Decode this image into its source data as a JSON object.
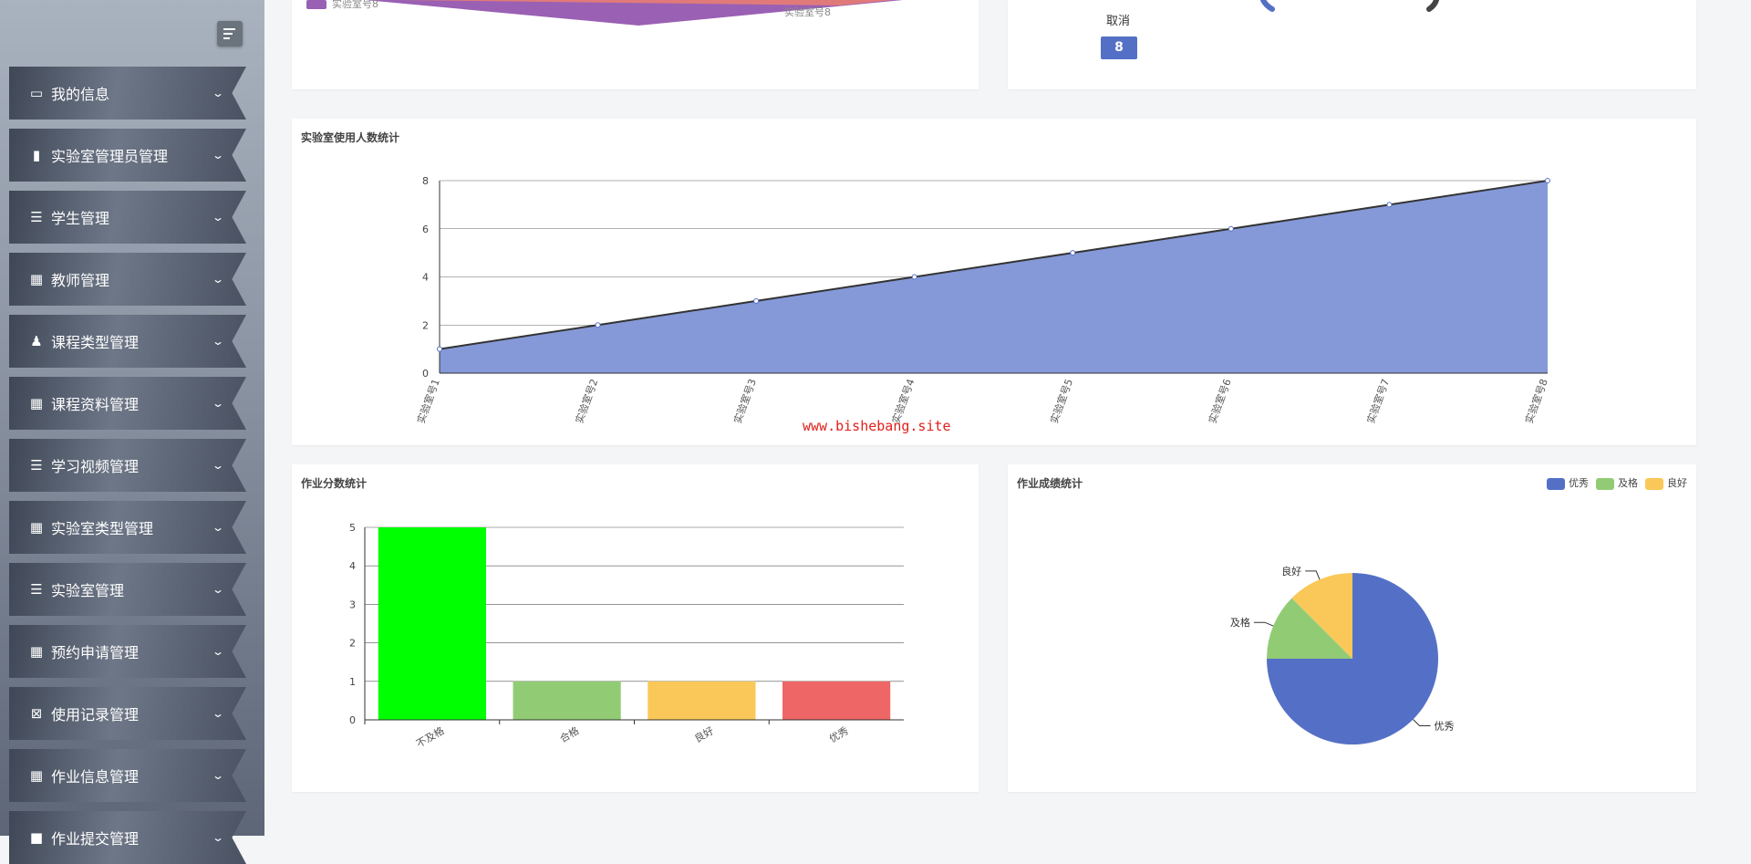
{
  "sidebar": {
    "items": [
      {
        "label": "我的信息",
        "icon": "card-icon",
        "glyph": "▭"
      },
      {
        "label": "实验室管理员管理",
        "icon": "book-icon",
        "glyph": "▮"
      },
      {
        "label": "学生管理",
        "icon": "sliders-icon",
        "glyph": "☰"
      },
      {
        "label": "教师管理",
        "icon": "grid-icon",
        "glyph": "▦"
      },
      {
        "label": "课程类型管理",
        "icon": "user-stamp-icon",
        "glyph": "♟"
      },
      {
        "label": "课程资料管理",
        "icon": "grid-icon",
        "glyph": "▦"
      },
      {
        "label": "学习视频管理",
        "icon": "list-indent-icon",
        "glyph": "☰"
      },
      {
        "label": "实验室类型管理",
        "icon": "grid-icon",
        "glyph": "▦"
      },
      {
        "label": "实验室管理",
        "icon": "list-outdent-icon",
        "glyph": "☰"
      },
      {
        "label": "预约申请管理",
        "icon": "apps-icon",
        "glyph": "▦"
      },
      {
        "label": "使用记录管理",
        "icon": "clipboard-x-icon",
        "glyph": "⊠"
      },
      {
        "label": "作业信息管理",
        "icon": "grid-icon",
        "glyph": "▦"
      },
      {
        "label": "作业提交管理",
        "icon": "square-icon",
        "glyph": "■"
      }
    ]
  },
  "top_left": {
    "legend_label": "实验室号8",
    "slice_label": "实验室号8",
    "color": "#9a60b4"
  },
  "top_right": {
    "label": "取消",
    "badge": "8",
    "badge_color": "#5470c6"
  },
  "watermark": "www.bishebang.site",
  "chart_data": [
    {
      "type": "area",
      "title": "实验室使用人数统计",
      "categories": [
        "实验室号1",
        "实验室号2",
        "实验室号3",
        "实验室号4",
        "实验室号5",
        "实验室号6",
        "实验室号7",
        "实验室号8"
      ],
      "values": [
        1,
        2,
        3,
        4,
        5,
        6,
        7,
        8
      ],
      "ylim": [
        0,
        8
      ],
      "yticks": [
        0,
        2,
        4,
        6,
        8
      ],
      "color": "#8599d8"
    },
    {
      "type": "bar",
      "title": "作业分数统计",
      "categories": [
        "不及格",
        "合格",
        "良好",
        "优秀"
      ],
      "values": [
        5,
        1,
        1,
        1
      ],
      "ylim": [
        0,
        5
      ],
      "yticks": [
        0,
        1,
        2,
        3,
        4,
        5
      ],
      "colors": [
        "#00ff00",
        "#91cc75",
        "#fac858",
        "#ee6666"
      ]
    },
    {
      "type": "pie",
      "title": "作业成绩统计",
      "legend": "top-right",
      "slices": [
        {
          "name": "优秀",
          "value": 6,
          "color": "#5470c6"
        },
        {
          "name": "及格",
          "value": 1,
          "color": "#91cc75"
        },
        {
          "name": "良好",
          "value": 1,
          "color": "#fac858"
        }
      ]
    }
  ]
}
